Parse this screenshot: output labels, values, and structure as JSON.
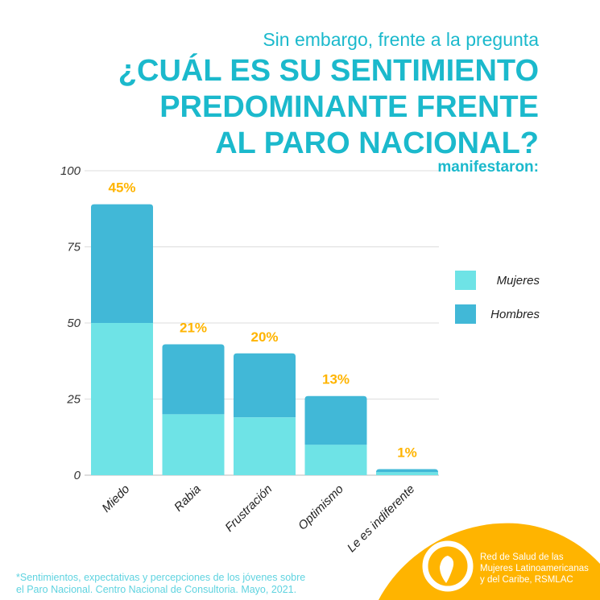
{
  "header": {
    "subtitle": "Sin embargo, frente a la pregunta",
    "question_lines": [
      "¿CUÁL ES SU SENTIMIENTO",
      "PREDOMINANTE FRENTE",
      "AL PARO NACIONAL?"
    ],
    "lead_out": "manifestaron:"
  },
  "chart_data": {
    "type": "bar",
    "stacked": true,
    "categories": [
      "Miedo",
      "Rabia",
      "Frustración",
      "Optimismo",
      "Le es indiferente"
    ],
    "series": [
      {
        "name": "Mujeres",
        "color": "#6ee3e6",
        "values": [
          50,
          20,
          19,
          10,
          1
        ]
      },
      {
        "name": "Hombres",
        "color": "#41b8d7",
        "values": [
          39,
          23,
          21,
          16,
          1
        ]
      }
    ],
    "data_labels": [
      "45%",
      "21%",
      "20%",
      "13%",
      "1%"
    ],
    "data_label_color": "#ffb400",
    "ylim": [
      0,
      100
    ],
    "yticks": [
      "0",
      "25",
      "50",
      "75",
      "100"
    ],
    "grid": true,
    "legend_placement": "right"
  },
  "footnote": [
    "*Sentimientos, expectativas y percepciones de los jóvenes sobre",
    "el Paro Nacional. Centro Nacional de Consultoria. Mayo, 2021."
  ],
  "logo": {
    "lines": [
      "Red de Salud de las",
      "Mujeres Latinoamericanas",
      "y del Caribe, RSMLAC"
    ],
    "accent": "#ffb400"
  }
}
